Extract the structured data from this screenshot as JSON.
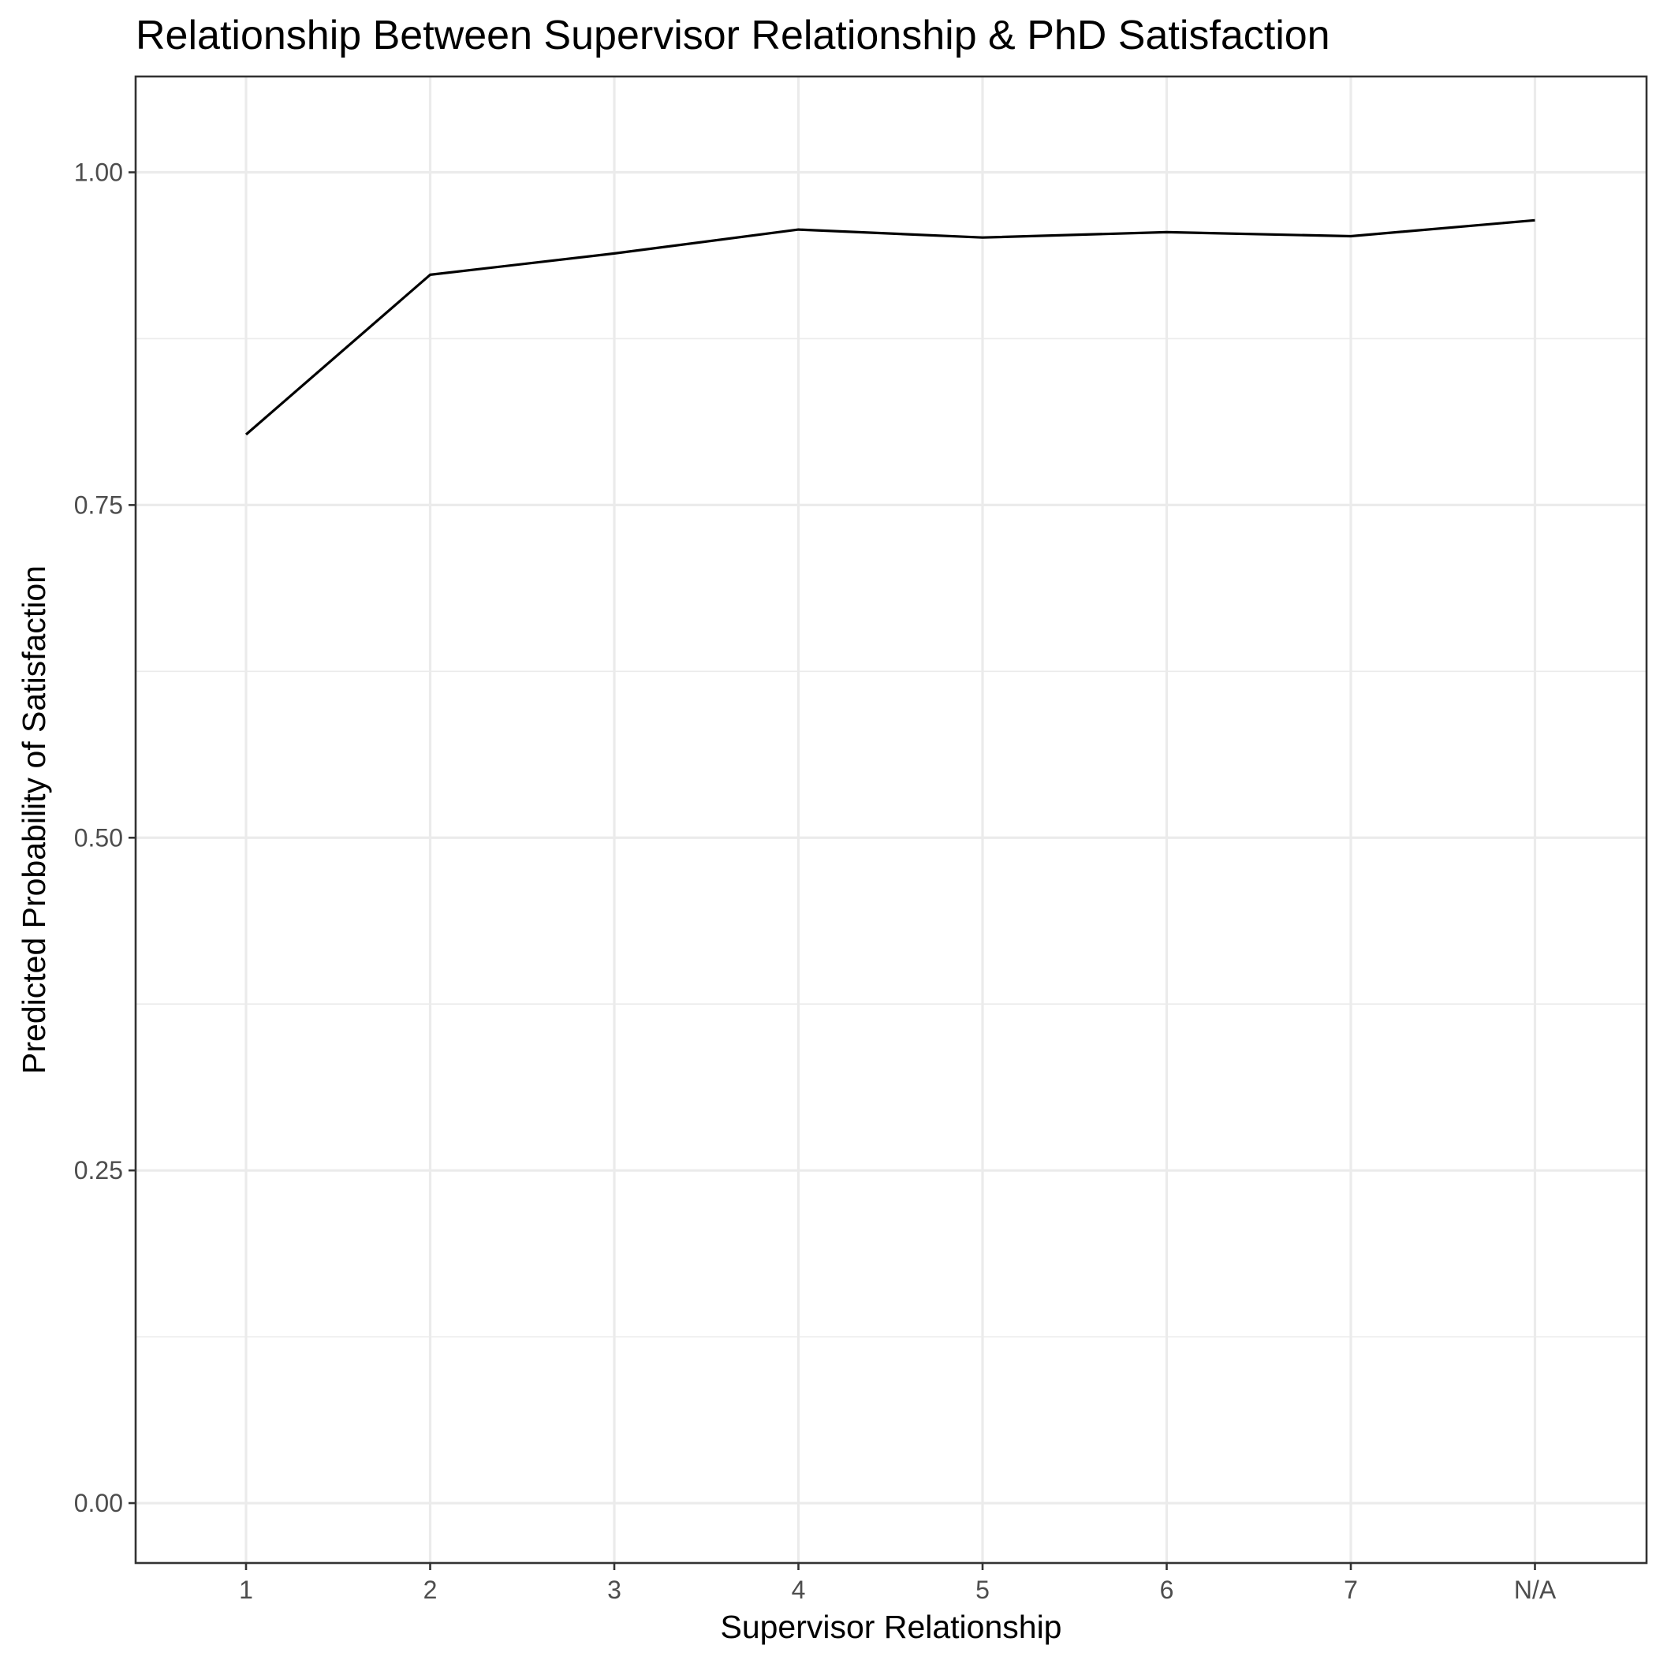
{
  "chart_data": {
    "type": "line",
    "title": "Relationship Between Supervisor Relationship & PhD Satisfaction",
    "xlabel": "Supervisor Relationship",
    "ylabel": "Predicted Probability of Satisfaction",
    "categories": [
      "1",
      "2",
      "3",
      "4",
      "5",
      "6",
      "7",
      "N/A"
    ],
    "series": [
      {
        "values": [
          0.803,
          0.923,
          0.939,
          0.957,
          0.951,
          0.955,
          0.952,
          0.964
        ],
        "color": "#000000"
      }
    ],
    "ylim": [
      -0.045,
      1.072
    ],
    "yticks": [
      0.0,
      0.25,
      0.5,
      0.75,
      1.0
    ],
    "ytick_labels": [
      "0.00",
      "0.25",
      "0.50",
      "0.75",
      "1.00"
    ],
    "minor_yticks": [
      0.125,
      0.375,
      0.625,
      0.875
    ],
    "grid": true,
    "legend": "none",
    "colors": {
      "grid": "#ebebeb",
      "panel_border": "#333333",
      "tick_text": "#4d4d4d",
      "line": "#000000"
    }
  }
}
